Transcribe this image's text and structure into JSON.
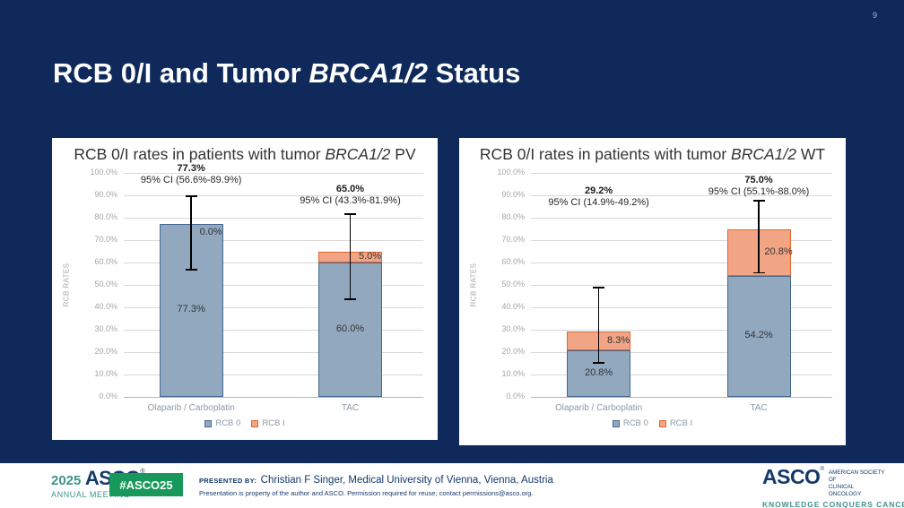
{
  "slide": {
    "page_number": "9",
    "title_prefix": "RCB 0/I and Tumor ",
    "title_italic": "BRCA1/2",
    "title_suffix": " Status"
  },
  "footer": {
    "meeting_year": "2025",
    "meeting_org": "ASCO",
    "meeting_reg": "®",
    "meeting_name": "ANNUAL MEETING",
    "hashtag": "#ASCO25",
    "presented_by_label": "PRESENTED BY:",
    "presenter": "Christian F Singer, Medical University of Vienna, Vienna, Austria",
    "disclaimer": "Presentation is property of the author and ASCO. Permission required for reuse; contact permissions@asco.org.",
    "org_name": "ASCO",
    "org_reg": "®",
    "org_tagline_line1": "AMERICAN SOCIETY OF",
    "org_tagline_line2": "CLINICAL ONCOLOGY",
    "org_motto": "KNOWLEDGE CONQUERS CANCER"
  },
  "colors": {
    "slide_background": "#0f2a5a",
    "panel_background": "#ffffff",
    "rcb0_fill": "#92a8bf",
    "rcb0_border": "#44698f",
    "rcb1_fill": "#f2a585",
    "rcb1_border": "#e0672f",
    "teal": "#3e9489",
    "navy_text": "#123a6b",
    "badge_green": "#18995b"
  },
  "chart_data": [
    {
      "type": "bar",
      "stacked": true,
      "title_prefix": "RCB 0/I rates in patients with tumor ",
      "title_italic": "BRCA1/2",
      "title_suffix": " PV",
      "ylabel": "RCB RATES",
      "ylim": [
        0,
        100
      ],
      "ytick_step": 10,
      "grid": true,
      "legend_position": "bottom",
      "categories": [
        "Olaparib / Carboplatin",
        "TAC"
      ],
      "series": [
        {
          "name": "RCB 0",
          "values": [
            77.3,
            60.0
          ],
          "labels": [
            "77.3%",
            "60.0%"
          ]
        },
        {
          "name": "RCB I",
          "values": [
            0.0,
            5.0
          ],
          "labels": [
            "0.0%",
            "5.0%"
          ]
        }
      ],
      "error_bars_95ci": [
        [
          56.6,
          89.9
        ],
        [
          43.3,
          81.9
        ]
      ],
      "annotations": [
        {
          "total": "77.3%",
          "ci": "95% CI (56.6%-89.9%)",
          "level": 94
        },
        {
          "total": "65.0%",
          "ci": "95% CI (43.3%-81.9%)",
          "level": 85
        }
      ]
    },
    {
      "type": "bar",
      "stacked": true,
      "title_prefix": "RCB 0/I rates in patients with tumor ",
      "title_italic": "BRCA1/2",
      "title_suffix": " WT",
      "ylabel": "RCB RATES",
      "ylim": [
        0,
        100
      ],
      "ytick_step": 10,
      "grid": true,
      "legend_position": "bottom",
      "categories": [
        "Olaparib / Carboplatin",
        "TAC"
      ],
      "series": [
        {
          "name": "RCB 0",
          "values": [
            20.8,
            54.2
          ],
          "labels": [
            "20.8%",
            "54.2%"
          ]
        },
        {
          "name": "RCB I",
          "values": [
            8.3,
            20.8
          ],
          "labels": [
            "8.3%",
            "20.8%"
          ]
        }
      ],
      "error_bars_95ci": [
        [
          14.9,
          49.2
        ],
        [
          55.1,
          88.0
        ]
      ],
      "annotations": [
        {
          "total": "29.2%",
          "ci": "95% CI (14.9%-49.2%)",
          "level": 84
        },
        {
          "total": "75.0%",
          "ci": "95% CI (55.1%-88.0%)",
          "level": 89
        }
      ]
    }
  ]
}
